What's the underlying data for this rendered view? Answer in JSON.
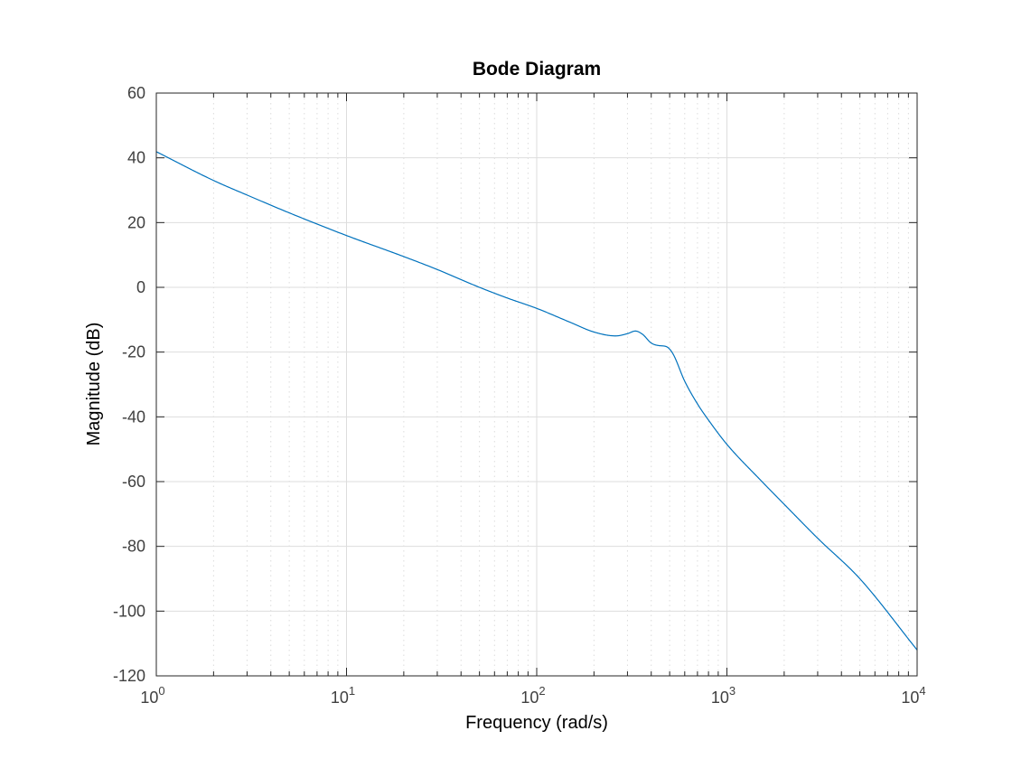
{
  "chart_data": {
    "type": "line",
    "title": "Bode Diagram",
    "xlabel": "Frequency  (rad/s)",
    "ylabel": "Magnitude (dB)",
    "xscale": "log",
    "xlim": [
      1,
      10000
    ],
    "ylim": [
      -120,
      60
    ],
    "grid": true,
    "minor_grid": true,
    "x_ticks": [
      {
        "value": 1,
        "base": "10",
        "exp": "0"
      },
      {
        "value": 10,
        "base": "10",
        "exp": "1"
      },
      {
        "value": 100,
        "base": "10",
        "exp": "2"
      },
      {
        "value": 1000,
        "base": "10",
        "exp": "3"
      },
      {
        "value": 10000,
        "base": "10",
        "exp": "4"
      }
    ],
    "y_ticks": [
      {
        "value": 60,
        "label": "60"
      },
      {
        "value": 40,
        "label": "40"
      },
      {
        "value": 20,
        "label": "20"
      },
      {
        "value": 0,
        "label": "0"
      },
      {
        "value": -20,
        "label": "-20"
      },
      {
        "value": -40,
        "label": "-40"
      },
      {
        "value": -60,
        "label": "-60"
      },
      {
        "value": -80,
        "label": "-80"
      },
      {
        "value": -100,
        "label": "-100"
      },
      {
        "value": -120,
        "label": "-120"
      }
    ],
    "series": [
      {
        "color": "#0072BD",
        "x": [
          1,
          2,
          3,
          5,
          10,
          20,
          30,
          50,
          70,
          100,
          150,
          200,
          260,
          300,
          330,
          360,
          400,
          440,
          480,
          520,
          600,
          700,
          800,
          1000,
          1500,
          2000,
          3000,
          5000,
          10000
        ],
        "y": [
          41.9,
          33.0,
          28.5,
          23.0,
          16.0,
          9.5,
          5.5,
          0.0,
          -3.3,
          -6.5,
          -10.8,
          -13.8,
          -15.0,
          -14.3,
          -13.5,
          -14.5,
          -17.2,
          -18.0,
          -18.3,
          -20.5,
          -29.0,
          -36.0,
          -41.0,
          -48.5,
          -59.5,
          -67.0,
          -77.5,
          -90.0,
          -112.0
        ]
      }
    ]
  }
}
